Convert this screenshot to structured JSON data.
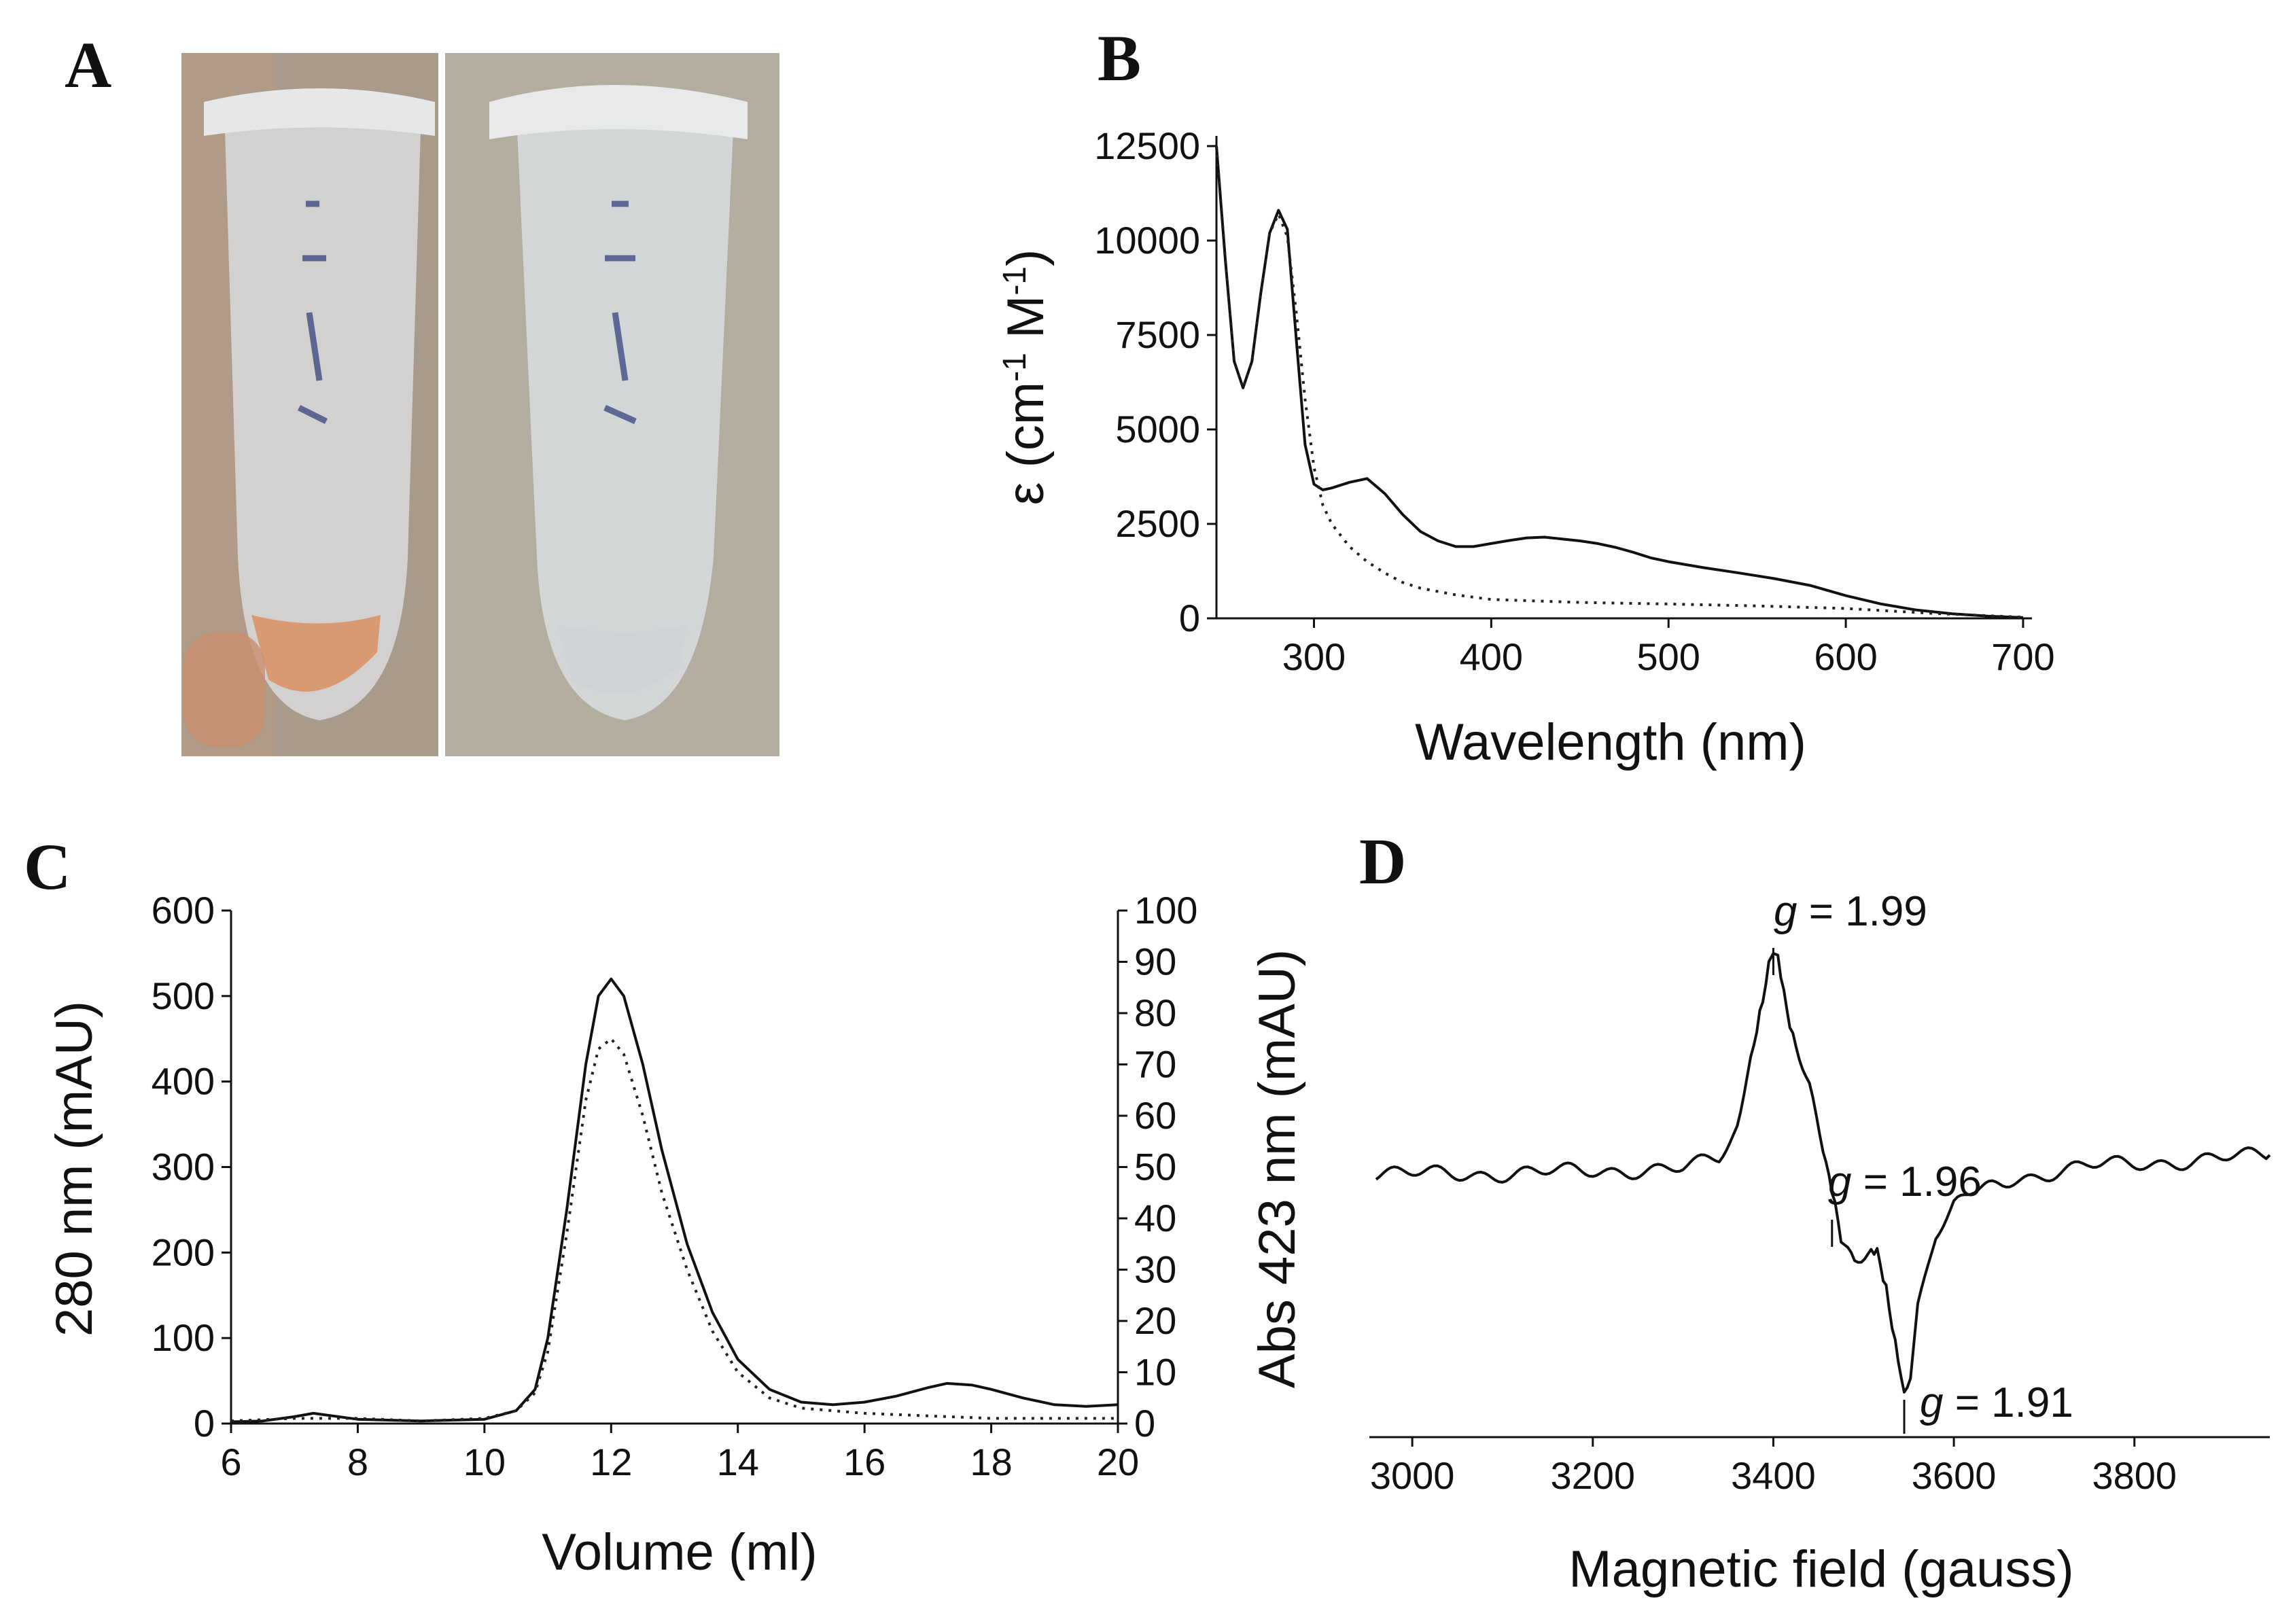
{
  "panels": {
    "A": {
      "label": "A",
      "colors": {
        "background": "#a99b8c",
        "tube": "#d9dbdc",
        "pellet_left": "#d99a73",
        "pellet_right": "#cfd2d6",
        "ink": "#2d3a78"
      }
    },
    "B": {
      "label": "B"
    },
    "C": {
      "label": "C"
    },
    "D": {
      "label": "D"
    }
  },
  "chart_data": [
    {
      "id": "B",
      "type": "line",
      "title": "",
      "xlabel": "Wavelength (nm)",
      "ylabel": "ε (cm-1 M-1)",
      "ylabel_parts": [
        "ε (cm",
        "-1",
        " M",
        "-1",
        ")"
      ],
      "xlim": [
        245,
        705
      ],
      "ylim": [
        0,
        12500
      ],
      "xticks": [
        300,
        400,
        500,
        600,
        700
      ],
      "xtick_labels": [
        "300",
        "400",
        "500",
        "600",
        "700"
      ],
      "yticks": [
        0,
        2500,
        5000,
        7500,
        10000,
        12500
      ],
      "ytick_labels": [
        "0",
        "2500",
        "5000",
        "7500",
        "10000",
        "12500"
      ],
      "series": [
        {
          "name": "solid",
          "style": "solid",
          "x": [
            245,
            250,
            255,
            260,
            265,
            270,
            275,
            280,
            285,
            290,
            295,
            300,
            305,
            310,
            320,
            330,
            340,
            350,
            360,
            370,
            380,
            390,
            400,
            410,
            420,
            430,
            440,
            450,
            460,
            470,
            480,
            490,
            500,
            520,
            540,
            560,
            580,
            600,
            620,
            640,
            660,
            680,
            700
          ],
          "y": [
            12500,
            9500,
            6800,
            6100,
            6800,
            8600,
            10200,
            10800,
            10300,
            7400,
            4600,
            3550,
            3400,
            3450,
            3600,
            3700,
            3300,
            2750,
            2300,
            2050,
            1900,
            1900,
            1980,
            2060,
            2130,
            2150,
            2100,
            2050,
            1980,
            1880,
            1750,
            1600,
            1500,
            1340,
            1200,
            1050,
            870,
            600,
            380,
            220,
            120,
            60,
            20
          ]
        },
        {
          "name": "dotted",
          "style": "dotted",
          "x": [
            245,
            250,
            255,
            260,
            265,
            270,
            275,
            280,
            285,
            290,
            295,
            300,
            305,
            310,
            320,
            330,
            340,
            350,
            360,
            380,
            400,
            450,
            500,
            550,
            600,
            650,
            700
          ],
          "y": [
            12500,
            9500,
            6800,
            6100,
            6800,
            8600,
            10200,
            10700,
            10100,
            8100,
            5800,
            4000,
            3000,
            2500,
            1900,
            1500,
            1200,
            950,
            800,
            620,
            500,
            420,
            380,
            330,
            260,
            130,
            30
          ]
        }
      ]
    },
    {
      "id": "C",
      "type": "line",
      "title": "",
      "xlabel": "Volume (ml)",
      "ylabel": "280 nm (mAU)",
      "ylabel_right": "Abs 423 nm (mAU)",
      "xlim": [
        6,
        20
      ],
      "ylim": [
        0,
        600
      ],
      "ylim_right": [
        0,
        100
      ],
      "xticks": [
        6,
        8,
        10,
        12,
        14,
        16,
        18,
        20
      ],
      "xtick_labels": [
        "6",
        "8",
        "10",
        "12",
        "14",
        "16",
        "18",
        "20"
      ],
      "yticks": [
        0,
        100,
        200,
        300,
        400,
        500,
        600
      ],
      "ytick_labels": [
        "0",
        "100",
        "200",
        "300",
        "400",
        "500",
        "600"
      ],
      "yticks_right": [
        0,
        10,
        20,
        30,
        40,
        50,
        60,
        70,
        80,
        90,
        100
      ],
      "ytick_labels_right": [
        "0",
        "10",
        "20",
        "30",
        "40",
        "50",
        "60",
        "70",
        "80",
        "90",
        "100"
      ],
      "series": [
        {
          "name": "280 nm",
          "style": "solid",
          "axis": "left",
          "x": [
            6,
            6.5,
            7,
            7.3,
            7.6,
            8,
            9,
            10,
            10.5,
            10.8,
            11,
            11.3,
            11.6,
            11.8,
            12,
            12.2,
            12.5,
            12.8,
            13.2,
            13.6,
            14,
            14.5,
            15,
            15.5,
            16,
            16.5,
            17,
            17.3,
            17.7,
            18,
            18.5,
            19,
            19.5,
            20
          ],
          "y": [
            2,
            3,
            8,
            12,
            9,
            5,
            3,
            5,
            15,
            40,
            100,
            250,
            420,
            500,
            520,
            500,
            420,
            320,
            210,
            130,
            75,
            40,
            25,
            22,
            25,
            32,
            42,
            47,
            45,
            40,
            30,
            22,
            20,
            22
          ]
        },
        {
          "name": "Abs 423 nm",
          "style": "dotted",
          "axis": "right",
          "x": [
            6,
            7,
            8,
            9,
            10,
            10.5,
            10.8,
            11,
            11.3,
            11.6,
            11.8,
            12,
            12.2,
            12.5,
            12.8,
            13.2,
            13.6,
            14,
            14.5,
            15,
            16,
            17,
            18,
            19,
            20
          ],
          "y": [
            0.5,
            1,
            1,
            0.5,
            1,
            2.5,
            6,
            14,
            37,
            63,
            73,
            75,
            72,
            60,
            45,
            30,
            18,
            10,
            5,
            3,
            2,
            1.5,
            1,
            1,
            1
          ]
        }
      ]
    },
    {
      "id": "D",
      "type": "line",
      "title": "",
      "xlabel": "Magnetic field (gauss)",
      "ylabel": "",
      "xlim": [
        2960,
        3950
      ],
      "ylim": [
        -1.6,
        1.6
      ],
      "xticks": [
        3000,
        3200,
        3400,
        3600,
        3800
      ],
      "xtick_labels": [
        "3000",
        "3200",
        "3400",
        "3600",
        "3800"
      ],
      "annotations": [
        {
          "g_symbol": "g",
          "text": " = 1.99",
          "x": 3400
        },
        {
          "g_symbol": "g",
          "text": " = 1.96",
          "x": 3465
        },
        {
          "g_symbol": "g",
          "text": " = 1.91",
          "x": 3545
        }
      ],
      "series": [
        {
          "name": "EPR",
          "style": "solid",
          "x": [
            2960,
            3100,
            3200,
            3300,
            3340,
            3360,
            3375,
            3385,
            3395,
            3400,
            3405,
            3415,
            3425,
            3440,
            3455,
            3465,
            3475,
            3490,
            3505,
            3515,
            3525,
            3535,
            3545,
            3552,
            3560,
            3580,
            3600,
            3650,
            3750,
            3850,
            3950
          ],
          "y": [
            0,
            0,
            0.02,
            0.03,
            0.1,
            0.3,
            0.7,
            1.05,
            1.35,
            1.45,
            1.35,
            1.05,
            0.85,
            0.6,
            0.2,
            -0.1,
            -0.45,
            -0.6,
            -0.55,
            -0.5,
            -0.7,
            -1.1,
            -1.45,
            -1.3,
            -0.85,
            -0.4,
            -0.2,
            -0.05,
            0.05,
            0.08,
            0.12
          ]
        }
      ]
    }
  ]
}
